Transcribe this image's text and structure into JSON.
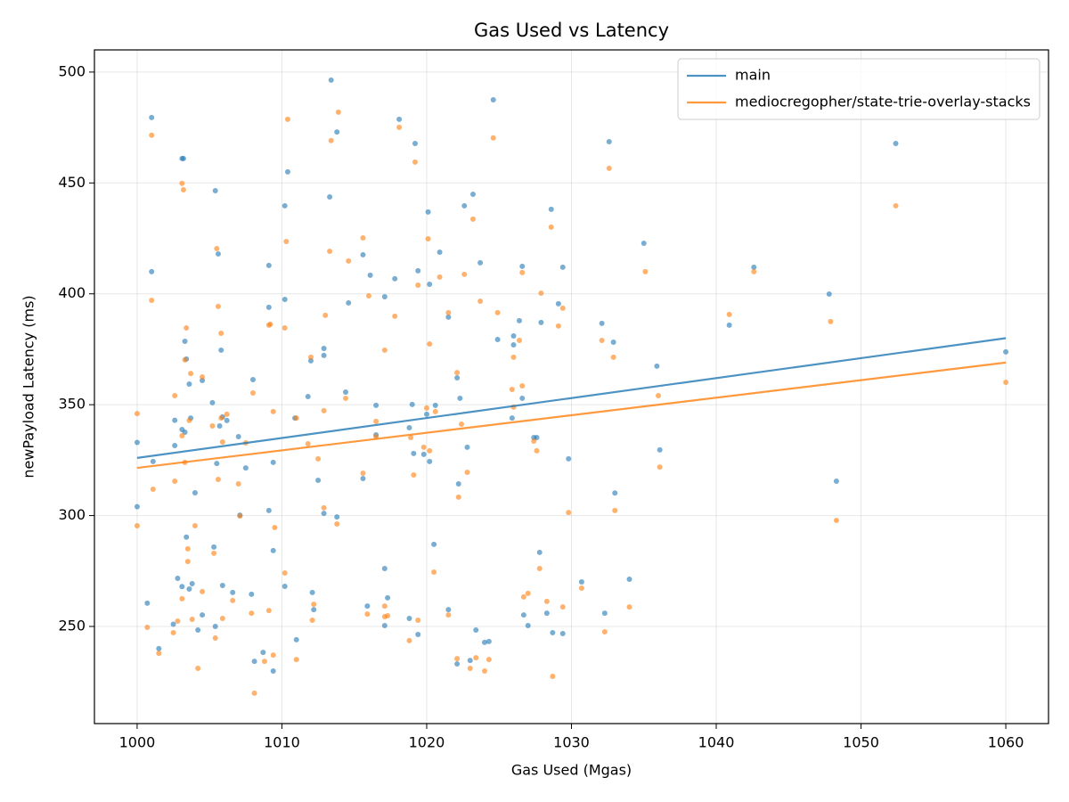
{
  "chart_data": {
    "type": "scatter",
    "title": "Gas Used vs Latency",
    "x_label": "Gas Used (Mgas)",
    "y_label": "newPayload Latency (ms)",
    "xlim": [
      997.05,
      1062.95
    ],
    "ylim": [
      206.2,
      510
    ],
    "xticks": [
      1000,
      1010,
      1020,
      1030,
      1040,
      1050,
      1060
    ],
    "yticks": [
      250,
      300,
      350,
      400,
      450,
      500
    ],
    "grid": true,
    "legend": "upper right",
    "series": [
      {
        "name": "main",
        "color": "#1f77b4",
        "x": [
          1000,
          1000,
          1000.7,
          1001,
          1001,
          1001.1,
          1001.5,
          1002.5,
          1002.6,
          1002.6,
          1002.8,
          1003.1,
          1003.2,
          1003.1,
          1003.1,
          1003.3,
          1003.4,
          1003.3,
          1003.4,
          1003.6,
          1003.6,
          1003.7,
          1003.8,
          1004,
          1004.2,
          1004.5,
          1004.5,
          1005.2,
          1005.3,
          1005.4,
          1005.4,
          1005.6,
          1005.5,
          1005.7,
          1005.8,
          1005.9,
          1005.9,
          1006.2,
          1006.6,
          1007,
          1007.1,
          1007.5,
          1008,
          1007.9,
          1008.1,
          1008.7,
          1009.1,
          1009.1,
          1009.1,
          1009.4,
          1009.4,
          1009.4,
          1010.2,
          1010.2,
          1010.2,
          1010.4,
          1011,
          1010.9,
          1011.8,
          1012,
          1012.1,
          1012.2,
          1012.5,
          1012.9,
          1012.9,
          1012.9,
          1013.3,
          1013.4,
          1013.8,
          1013.8,
          1014.4,
          1014.6,
          1015.6,
          1015.6,
          1015.9,
          1016.1,
          1016.5,
          1016.5,
          1017.1,
          1017.1,
          1017.1,
          1017.3,
          1017.8,
          1018.1,
          1018.8,
          1018.8,
          1019,
          1019.2,
          1019.1,
          1019.4,
          1019.4,
          1019.8,
          1020,
          1020.1,
          1020.2,
          1020.2,
          1020.5,
          1020.6,
          1020.9,
          1021.5,
          1021.5,
          1022.1,
          1022.1,
          1022.2,
          1022.3,
          1022.6,
          1022.8,
          1023,
          1023.2,
          1023.4,
          1023.7,
          1024,
          1024.3,
          1024.6,
          1024.9,
          1025.9,
          1026,
          1026,
          1026.4,
          1026.6,
          1026.6,
          1026.7,
          1027,
          1027.4,
          1027.6,
          1027.8,
          1027.9,
          1028.3,
          1028.6,
          1028.7,
          1029.1,
          1029.4,
          1029.4,
          1029.8,
          1030.7,
          1032.1,
          1032.3,
          1032.6,
          1032.9,
          1033,
          1034,
          1035,
          1035.9,
          1036.1,
          1040.9,
          1042.6,
          1047.8,
          1048.3,
          1052.4,
          1060
        ],
        "values": [
          333,
          304,
          260.5,
          479.5,
          410,
          324.4,
          240,
          251,
          343,
          331.6,
          271.7,
          461,
          461,
          338.8,
          268,
          378.6,
          370.6,
          337.6,
          290.3,
          266.9,
          359.3,
          344,
          269.3,
          310.3,
          248.4,
          255.2,
          360.9,
          350.9,
          285.8,
          250,
          446.5,
          418,
          323.5,
          340.4,
          374.6,
          344.5,
          268.5,
          342.9,
          265.3,
          335.6,
          300.2,
          321.5,
          361.3,
          264.5,
          234.3,
          238.3,
          412.8,
          393.9,
          302.3,
          324,
          284.2,
          229.9,
          439.7,
          397.5,
          268.1,
          455,
          244,
          344,
          353.7,
          369.8,
          265.3,
          257.6,
          315.9,
          372.2,
          375.4,
          301,
          443.7,
          496.4,
          473,
          299.4,
          355.7,
          395.9,
          417.6,
          316.7,
          259.2,
          408.4,
          349.7,
          336.4,
          398.7,
          276.1,
          250.4,
          262.9,
          406.8,
          478.7,
          253.6,
          339.6,
          350.1,
          467.8,
          328,
          410.4,
          246.4,
          327.6,
          345.7,
          436.9,
          404.3,
          324.4,
          287,
          349.7,
          418.8,
          389.5,
          257.6,
          362.1,
          233.1,
          314.3,
          352.9,
          439.7,
          330.8,
          234.7,
          444.9,
          248.4,
          414,
          242.8,
          243.2,
          487.5,
          379.4,
          344,
          377,
          381,
          387.9,
          412.4,
          352.9,
          255.2,
          250.4,
          335.2,
          335.2,
          283.4,
          387.1,
          256,
          438.1,
          247.2,
          395.5,
          246.8,
          412,
          325.6,
          270.1,
          386.7,
          256,
          468.6,
          378.2,
          310.2,
          271.3,
          422.8,
          367.4,
          329.6,
          385.9,
          412,
          399.9,
          315.5,
          467.8,
          373.8
        ],
        "trend": {
          "x": [
            1000,
            1060
          ],
          "values": [
            326,
            380
          ]
        }
      },
      {
        "name": "mediocregopher/state-trie-overlay-stacks",
        "color": "#ff7f0e",
        "x": [
          1000,
          1000,
          1000.7,
          1001,
          1001,
          1001.1,
          1001.5,
          1002.5,
          1002.6,
          1002.6,
          1002.8,
          1003.1,
          1003.2,
          1003.1,
          1003.1,
          1003.3,
          1003.4,
          1003.3,
          1003.5,
          1003.5,
          1003.6,
          1003.7,
          1003.8,
          1004,
          1004.2,
          1004.5,
          1004.5,
          1005.2,
          1005.3,
          1005.4,
          1005.5,
          1005.6,
          1005.6,
          1005.8,
          1005.8,
          1005.9,
          1005.9,
          1006.2,
          1006.6,
          1007,
          1007.1,
          1007.5,
          1008,
          1007.9,
          1008.1,
          1008.8,
          1009.1,
          1009.2,
          1009.1,
          1009.4,
          1009.5,
          1009.4,
          1010.2,
          1010.2,
          1010.4,
          1010.3,
          1011,
          1011,
          1011.8,
          1012,
          1012.1,
          1012.2,
          1012.5,
          1012.9,
          1013,
          1012.9,
          1013.3,
          1013.4,
          1013.9,
          1013.8,
          1014.4,
          1014.6,
          1015.6,
          1015.6,
          1015.9,
          1016,
          1016.5,
          1016.5,
          1017.1,
          1017.1,
          1017.1,
          1017.3,
          1017.8,
          1018.1,
          1018.8,
          1018.9,
          1019.2,
          1019.1,
          1019.4,
          1019.4,
          1019.8,
          1020,
          1020.1,
          1020.2,
          1020.2,
          1020.5,
          1020.6,
          1020.9,
          1021.5,
          1021.5,
          1022.1,
          1022.1,
          1022.2,
          1022.4,
          1022.6,
          1022.8,
          1023,
          1023.2,
          1023.4,
          1023.7,
          1024,
          1024.3,
          1024.6,
          1024.9,
          1025.9,
          1026,
          1026,
          1026.4,
          1026.6,
          1026.6,
          1026.7,
          1027,
          1027.4,
          1027.6,
          1027.8,
          1027.9,
          1028.3,
          1028.6,
          1028.7,
          1029.1,
          1029.4,
          1029.4,
          1029.8,
          1030.7,
          1032.1,
          1032.3,
          1032.6,
          1032.9,
          1033,
          1034,
          1035.1,
          1036,
          1036.1,
          1040.9,
          1042.6,
          1047.9,
          1048.3,
          1052.4,
          1060
        ],
        "values": [
          346,
          295.4,
          249.6,
          471.5,
          397.1,
          311.9,
          237.9,
          247.2,
          354.1,
          315.5,
          252.4,
          449.8,
          446.9,
          336,
          262.5,
          370.2,
          384.6,
          324,
          285,
          279.3,
          342.9,
          364.1,
          253.2,
          295.4,
          231.1,
          265.7,
          362.5,
          340.4,
          283,
          244.8,
          420.4,
          394.3,
          316.3,
          344,
          382.2,
          333.2,
          253.6,
          345.7,
          261.7,
          314.3,
          299.8,
          332.8,
          355.3,
          256,
          219.9,
          234.3,
          385.9,
          386.3,
          257.2,
          346.9,
          294.6,
          237.1,
          274.1,
          384.6,
          478.7,
          423.6,
          235.1,
          344,
          332.4,
          371.4,
          252.8,
          260,
          325.6,
          347.3,
          390.3,
          303.5,
          419.2,
          469.1,
          481.9,
          296.2,
          352.9,
          414.8,
          425.2,
          319.1,
          255.6,
          399.1,
          342.5,
          335.6,
          374.6,
          259.2,
          254.4,
          254.8,
          389.9,
          475.1,
          243.6,
          335.2,
          459.4,
          318.3,
          403.9,
          252.8,
          330.8,
          348.5,
          424.8,
          377.4,
          329.2,
          274.5,
          346.9,
          407.6,
          391.5,
          255.2,
          364.5,
          235.5,
          308.3,
          341.2,
          408.8,
          319.5,
          231.1,
          433.7,
          235.9,
          396.7,
          229.9,
          235.1,
          470.3,
          391.5,
          356.9,
          371.4,
          348.9,
          379,
          409.6,
          358.5,
          263.3,
          264.9,
          333.6,
          329.2,
          276.1,
          400.3,
          261.3,
          430.1,
          227.5,
          385.5,
          258.8,
          393.5,
          301.4,
          267.3,
          379,
          247.6,
          456.6,
          371.4,
          302.3,
          258.8,
          410,
          354.1,
          321.9,
          390.7,
          410,
          387.5,
          297.8,
          439.7,
          360.1
        ],
        "trend": {
          "x": [
            1000,
            1060
          ],
          "values": [
            321.5,
            369
          ]
        }
      }
    ]
  }
}
